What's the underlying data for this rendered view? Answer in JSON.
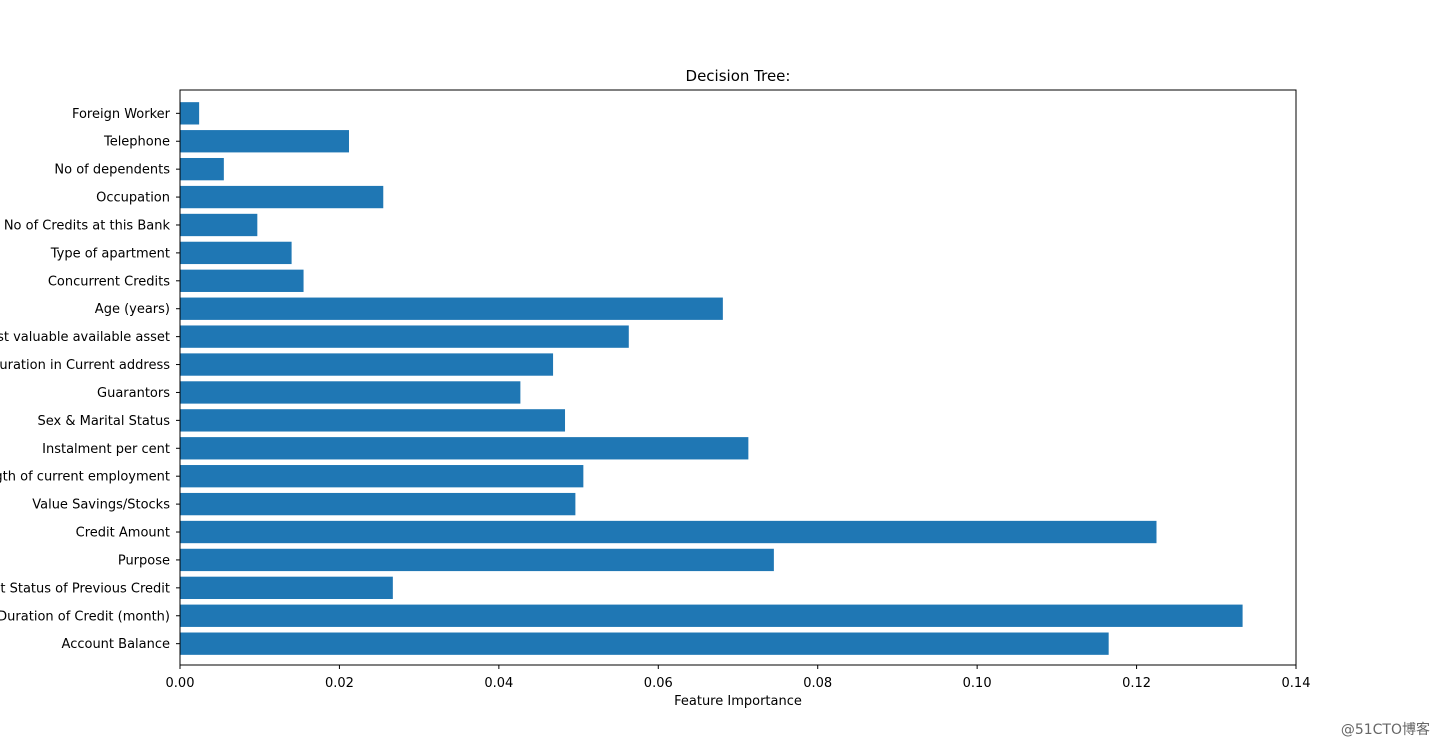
{
  "chart_data": {
    "type": "bar",
    "orientation": "horizontal",
    "title": "Decision Tree:",
    "xlabel": "Feature Importance",
    "ylabel": "",
    "xlim": [
      0.0,
      0.14
    ],
    "xticks": [
      "0.00",
      "0.02",
      "0.04",
      "0.06",
      "0.08",
      "0.10",
      "0.12",
      "0.14"
    ],
    "grid": false,
    "bar_color": "#1f77b4",
    "categories": [
      "Account Balance",
      "Duration of Credit (month)",
      "Payment Status of Previous Credit",
      "Purpose",
      "Credit Amount",
      "Value Savings/Stocks",
      "Length of current employment",
      "Instalment per cent",
      "Sex & Marital Status",
      "Guarantors",
      "Duration in Current address",
      "Most valuable available asset",
      "Age (years)",
      "Concurrent Credits",
      "Type of apartment",
      "No of Credits at this Bank",
      "Occupation",
      "No of dependents",
      "Telephone",
      "Foreign Worker"
    ],
    "values": [
      0.1165,
      0.1333,
      0.0267,
      0.0745,
      0.1225,
      0.0496,
      0.0506,
      0.0713,
      0.0483,
      0.0427,
      0.0468,
      0.0563,
      0.0681,
      0.0155,
      0.014,
      0.0097,
      0.0255,
      0.0055,
      0.0212,
      0.0024
    ]
  },
  "watermark": "@51CTO博客"
}
